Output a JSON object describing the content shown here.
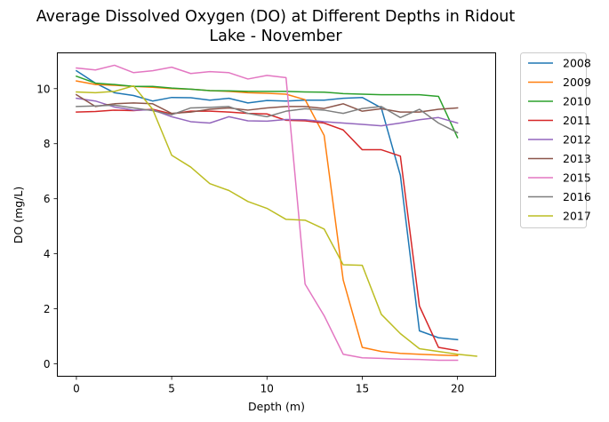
{
  "chart_data": {
    "type": "line",
    "title_line1": "Average Dissolved Oxygen (DO) at Different Depths in Ridout",
    "title_line2": "Lake - November",
    "xlabel": "Depth (m)",
    "ylabel": "DO (mg/L)",
    "xlim": [
      -1,
      22
    ],
    "ylim": [
      -0.45,
      11.3
    ],
    "xticks": [
      0,
      5,
      10,
      15,
      20
    ],
    "yticks": [
      0,
      2,
      4,
      6,
      8,
      10
    ],
    "grid": false,
    "legend_position": "outside-right",
    "series": [
      {
        "name": "2008",
        "color": "#1f77b4",
        "x": [
          0,
          1,
          2,
          3,
          4,
          5,
          6,
          7,
          8,
          9,
          10,
          11,
          12,
          13,
          14,
          15,
          16,
          17,
          18,
          19,
          20
        ],
        "y": [
          10.65,
          10.2,
          9.85,
          9.75,
          9.55,
          9.68,
          9.67,
          9.58,
          9.65,
          9.48,
          9.57,
          9.55,
          9.58,
          9.58,
          9.65,
          9.68,
          9.3,
          6.85,
          1.2,
          0.95,
          0.88
        ]
      },
      {
        "name": "2009",
        "color": "#ff7f0e",
        "x": [
          0,
          1,
          2,
          3,
          4,
          5,
          6,
          7,
          8,
          9,
          10,
          11,
          12,
          13,
          14,
          15,
          16,
          17,
          18,
          19,
          20
        ],
        "y": [
          10.28,
          10.15,
          10.12,
          10.08,
          10.05,
          10.0,
          9.98,
          9.93,
          9.9,
          9.85,
          9.83,
          9.8,
          9.6,
          8.3,
          3.05,
          0.6,
          0.45,
          0.38,
          0.35,
          0.32,
          0.3
        ]
      },
      {
        "name": "2010",
        "color": "#2ca02c",
        "x": [
          0,
          1,
          2,
          3,
          4,
          5,
          6,
          7,
          8,
          9,
          10,
          11,
          12,
          13,
          14,
          15,
          16,
          17,
          18,
          19,
          20
        ],
        "y": [
          10.45,
          10.2,
          10.15,
          10.08,
          10.08,
          10.02,
          9.98,
          9.93,
          9.92,
          9.9,
          9.9,
          9.9,
          9.88,
          9.87,
          9.82,
          9.8,
          9.78,
          9.78,
          9.78,
          9.72,
          8.22
        ]
      },
      {
        "name": "2011",
        "color": "#d62728",
        "x": [
          0,
          1,
          2,
          3,
          4,
          5,
          6,
          7,
          8,
          9,
          10,
          11,
          12,
          13,
          14,
          15,
          16,
          17,
          18,
          19,
          20
        ],
        "y": [
          9.15,
          9.17,
          9.22,
          9.2,
          9.25,
          9.08,
          9.18,
          9.18,
          9.15,
          9.1,
          9.08,
          8.85,
          8.83,
          8.75,
          8.5,
          7.78,
          7.78,
          7.55,
          2.1,
          0.6,
          0.48
        ]
      },
      {
        "name": "2012",
        "color": "#9467bd",
        "x": [
          0,
          1,
          2,
          3,
          4,
          5,
          6,
          7,
          8,
          9,
          10,
          11,
          12,
          13,
          14,
          15,
          16,
          17,
          18,
          19,
          20
        ],
        "y": [
          9.65,
          9.55,
          9.33,
          9.22,
          9.23,
          8.98,
          8.8,
          8.75,
          8.98,
          8.83,
          8.82,
          8.88,
          8.87,
          8.8,
          8.75,
          8.7,
          8.65,
          8.75,
          8.87,
          8.95,
          8.75
        ]
      },
      {
        "name": "2013",
        "color": "#8c564b",
        "x": [
          0,
          1,
          2,
          3,
          4,
          5,
          6,
          7,
          8,
          9,
          10,
          11,
          12,
          13,
          14,
          15,
          16,
          17,
          18,
          19,
          20
        ],
        "y": [
          9.78,
          9.35,
          9.45,
          9.48,
          9.45,
          9.1,
          9.15,
          9.25,
          9.3,
          9.22,
          9.3,
          9.35,
          9.35,
          9.28,
          9.45,
          9.18,
          9.27,
          9.15,
          9.15,
          9.25,
          9.3
        ]
      },
      {
        "name": "2015",
        "color": "#e377c2",
        "x": [
          0,
          1,
          2,
          3,
          4,
          5,
          6,
          7,
          8,
          9,
          10,
          11,
          12,
          13,
          14,
          15,
          16,
          17,
          18,
          19,
          20
        ],
        "y": [
          10.75,
          10.68,
          10.85,
          10.58,
          10.65,
          10.78,
          10.55,
          10.62,
          10.58,
          10.35,
          10.48,
          10.4,
          2.9,
          1.75,
          0.35,
          0.22,
          0.2,
          0.17,
          0.16,
          0.13,
          0.13
        ]
      },
      {
        "name": "2016",
        "color": "#7f7f7f",
        "x": [
          0,
          1,
          2,
          3,
          4,
          5,
          6,
          7,
          8,
          9,
          10,
          11,
          12,
          13,
          14,
          15,
          16,
          17,
          18,
          19,
          20
        ],
        "y": [
          9.35,
          9.37,
          9.4,
          9.3,
          9.2,
          9.05,
          9.3,
          9.32,
          9.35,
          9.1,
          8.98,
          9.18,
          9.27,
          9.22,
          9.1,
          9.28,
          9.35,
          8.95,
          9.25,
          8.75,
          8.4
        ]
      },
      {
        "name": "2017",
        "color": "#bcbd22",
        "x": [
          0,
          1,
          2,
          3,
          4,
          5,
          6,
          7,
          8,
          9,
          10,
          11,
          12,
          13,
          14,
          15,
          16,
          17,
          18,
          19,
          20,
          21
        ],
        "y": [
          9.88,
          9.85,
          9.9,
          10.1,
          9.25,
          7.58,
          7.15,
          6.55,
          6.3,
          5.9,
          5.65,
          5.25,
          5.22,
          4.9,
          3.6,
          3.58,
          1.8,
          1.1,
          0.55,
          0.45,
          0.35,
          0.28
        ]
      }
    ]
  }
}
